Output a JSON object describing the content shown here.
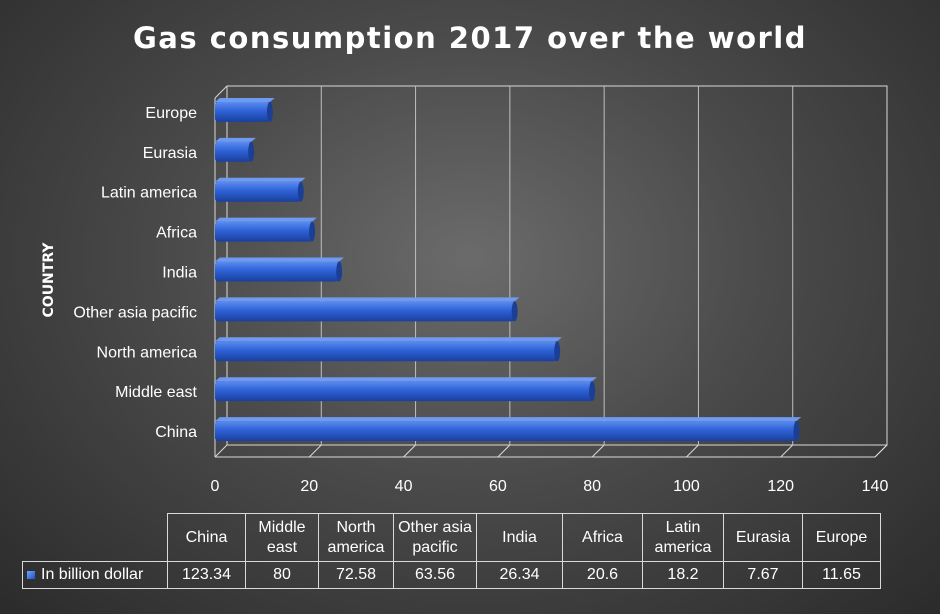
{
  "chart_data": {
    "type": "bar",
    "orientation": "horizontal",
    "title": "Gas consumption 2017 over the world",
    "ylabel": "COUNTRY",
    "xlabel": "",
    "categories": [
      "China",
      "Middle east",
      "North america",
      "Other asia pacific",
      "India",
      "Africa",
      "Latin america",
      "Eurasia",
      "Europe"
    ],
    "table_headers": [
      [
        "China"
      ],
      [
        "Middle",
        "east"
      ],
      [
        "North",
        "america"
      ],
      [
        "Other asia",
        "pacific"
      ],
      [
        "India"
      ],
      [
        "Africa"
      ],
      [
        "Latin",
        "america"
      ],
      [
        "Eurasia"
      ],
      [
        "Europe"
      ]
    ],
    "series": [
      {
        "name": "In billion dollar",
        "values": [
          123.34,
          80,
          72.58,
          63.56,
          26.34,
          20.6,
          18.2,
          7.67,
          11.65
        ],
        "value_labels": [
          "123.34",
          "80",
          "72.58",
          "63.56",
          "26.34",
          "20.6",
          "18.2",
          "7.67",
          "11.65"
        ]
      }
    ],
    "xlim": [
      0,
      140
    ],
    "xticks": [
      0,
      20,
      40,
      60,
      80,
      100,
      120,
      140
    ],
    "grid": true,
    "legend": "data-table",
    "bar_color": "#2e62d6"
  }
}
